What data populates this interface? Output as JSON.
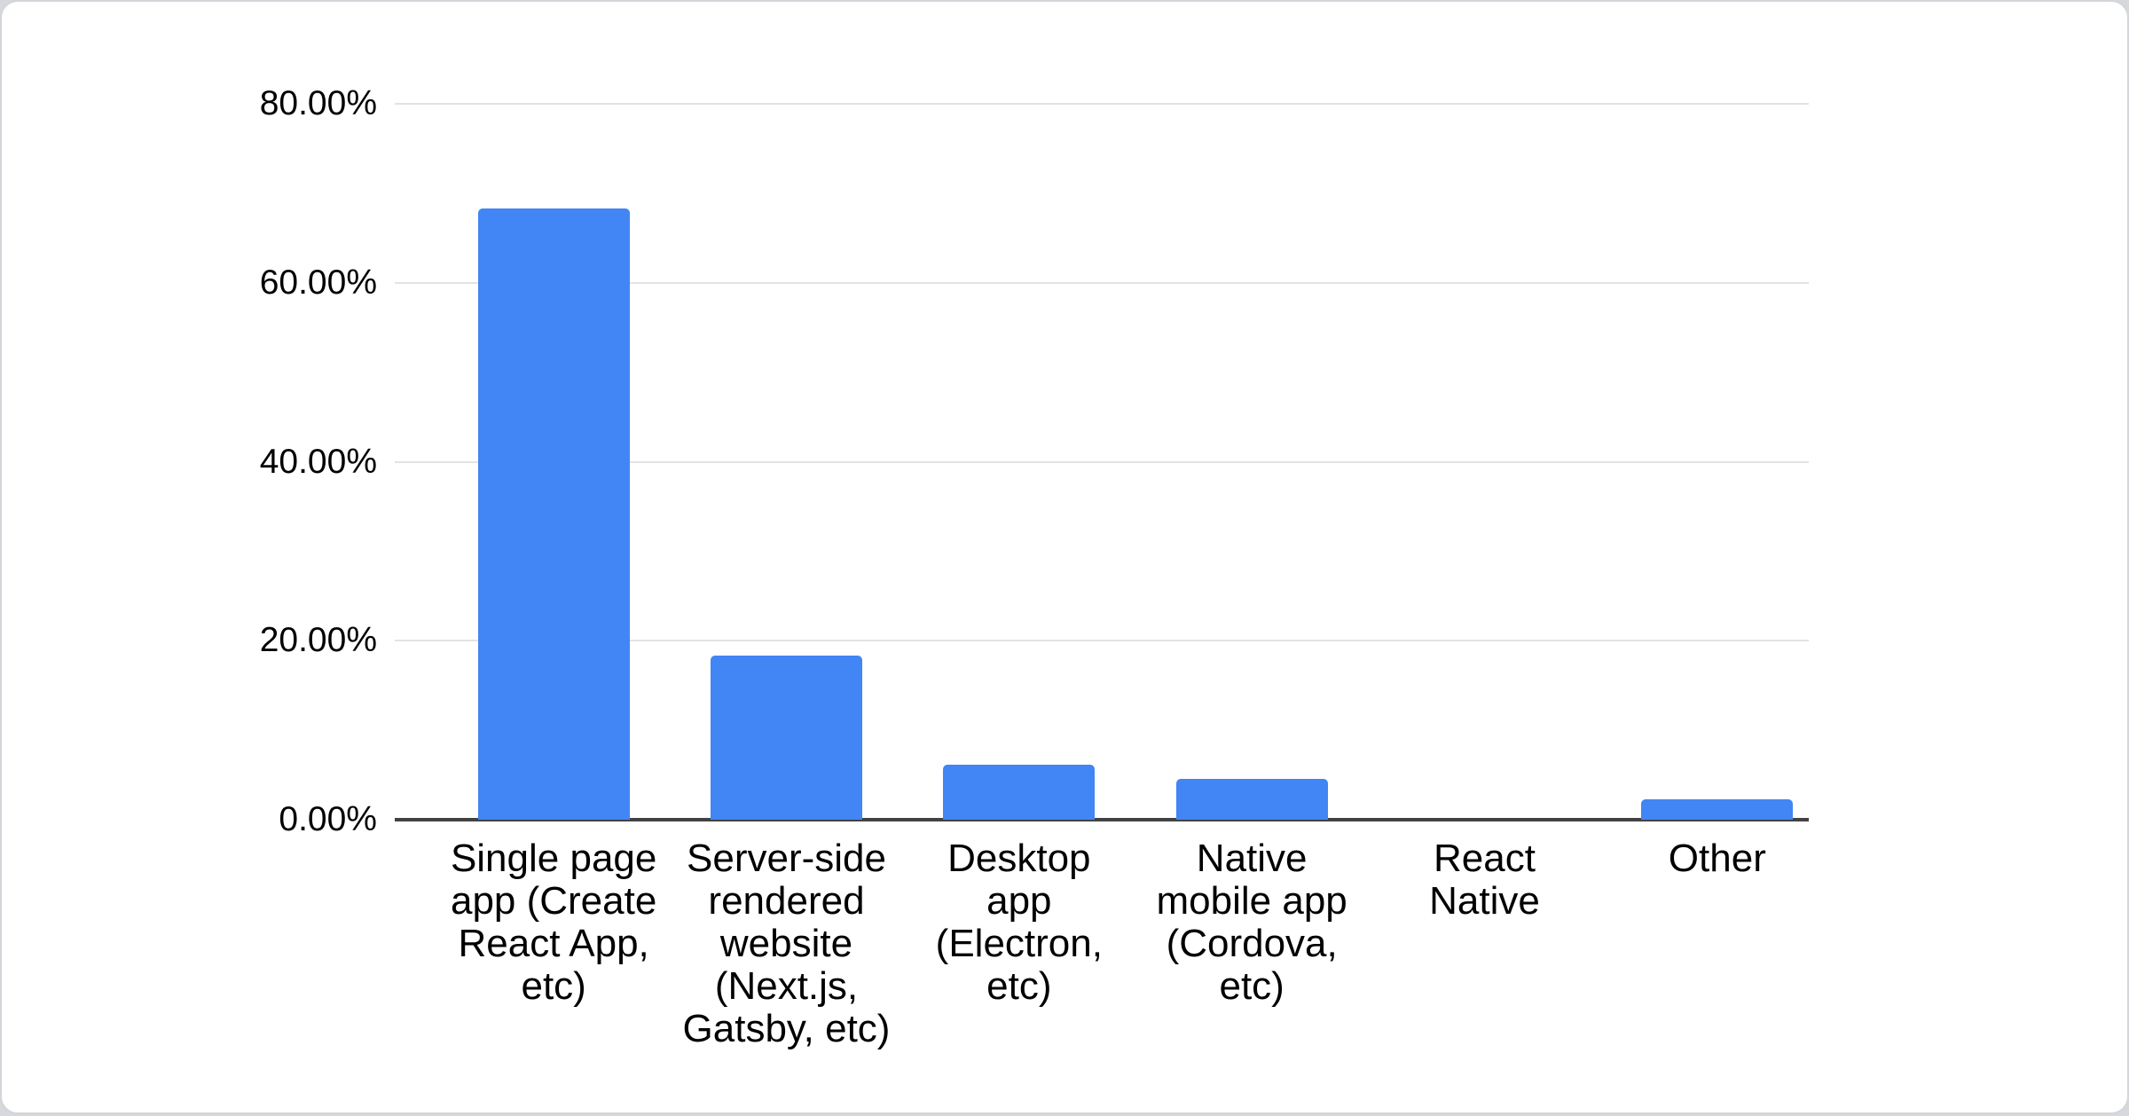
{
  "card": {
    "background": "#ffffff",
    "border_color": "#d2d5d9",
    "page_background": "#d6d8db"
  },
  "chart_data": {
    "type": "bar",
    "title": "",
    "xlabel": "",
    "ylabel": "",
    "categories": [
      "Single page app (Create React App, etc)",
      "Server-side rendered website (Next.js, Gatsby, etc)",
      "Desktop app (Electron, etc)",
      "Native mobile app (Cordova, etc)",
      "React Native",
      "Other"
    ],
    "category_display_lines": [
      [
        "Single page",
        "app (Create",
        "React App,",
        "etc)"
      ],
      [
        "Server-side",
        "rendered",
        "website",
        "(Next.js,",
        "Gatsby, etc)"
      ],
      [
        "Desktop",
        "app",
        "(Electron,",
        "etc)"
      ],
      [
        "Native",
        "mobile app",
        "(Cordova,",
        "etc)"
      ],
      [
        "React",
        "Native"
      ],
      [
        "Other"
      ]
    ],
    "values": [
      68.3,
      18.3,
      6.1,
      4.6,
      0,
      2.3
    ],
    "value_unit": "%",
    "y_ticks": [
      {
        "value": 80,
        "label": "80.00%"
      },
      {
        "value": 60,
        "label": "60.00%"
      },
      {
        "value": 40,
        "label": "40.00%"
      },
      {
        "value": 20,
        "label": "20.00%"
      },
      {
        "value": 0,
        "label": "0.00%"
      }
    ],
    "ylim": [
      0,
      80
    ],
    "grid": true,
    "legend": "none",
    "colors": {
      "bar": "#4285f4",
      "axis": "#424242",
      "gridline": "#e3e3e3",
      "text": "#000000"
    }
  }
}
